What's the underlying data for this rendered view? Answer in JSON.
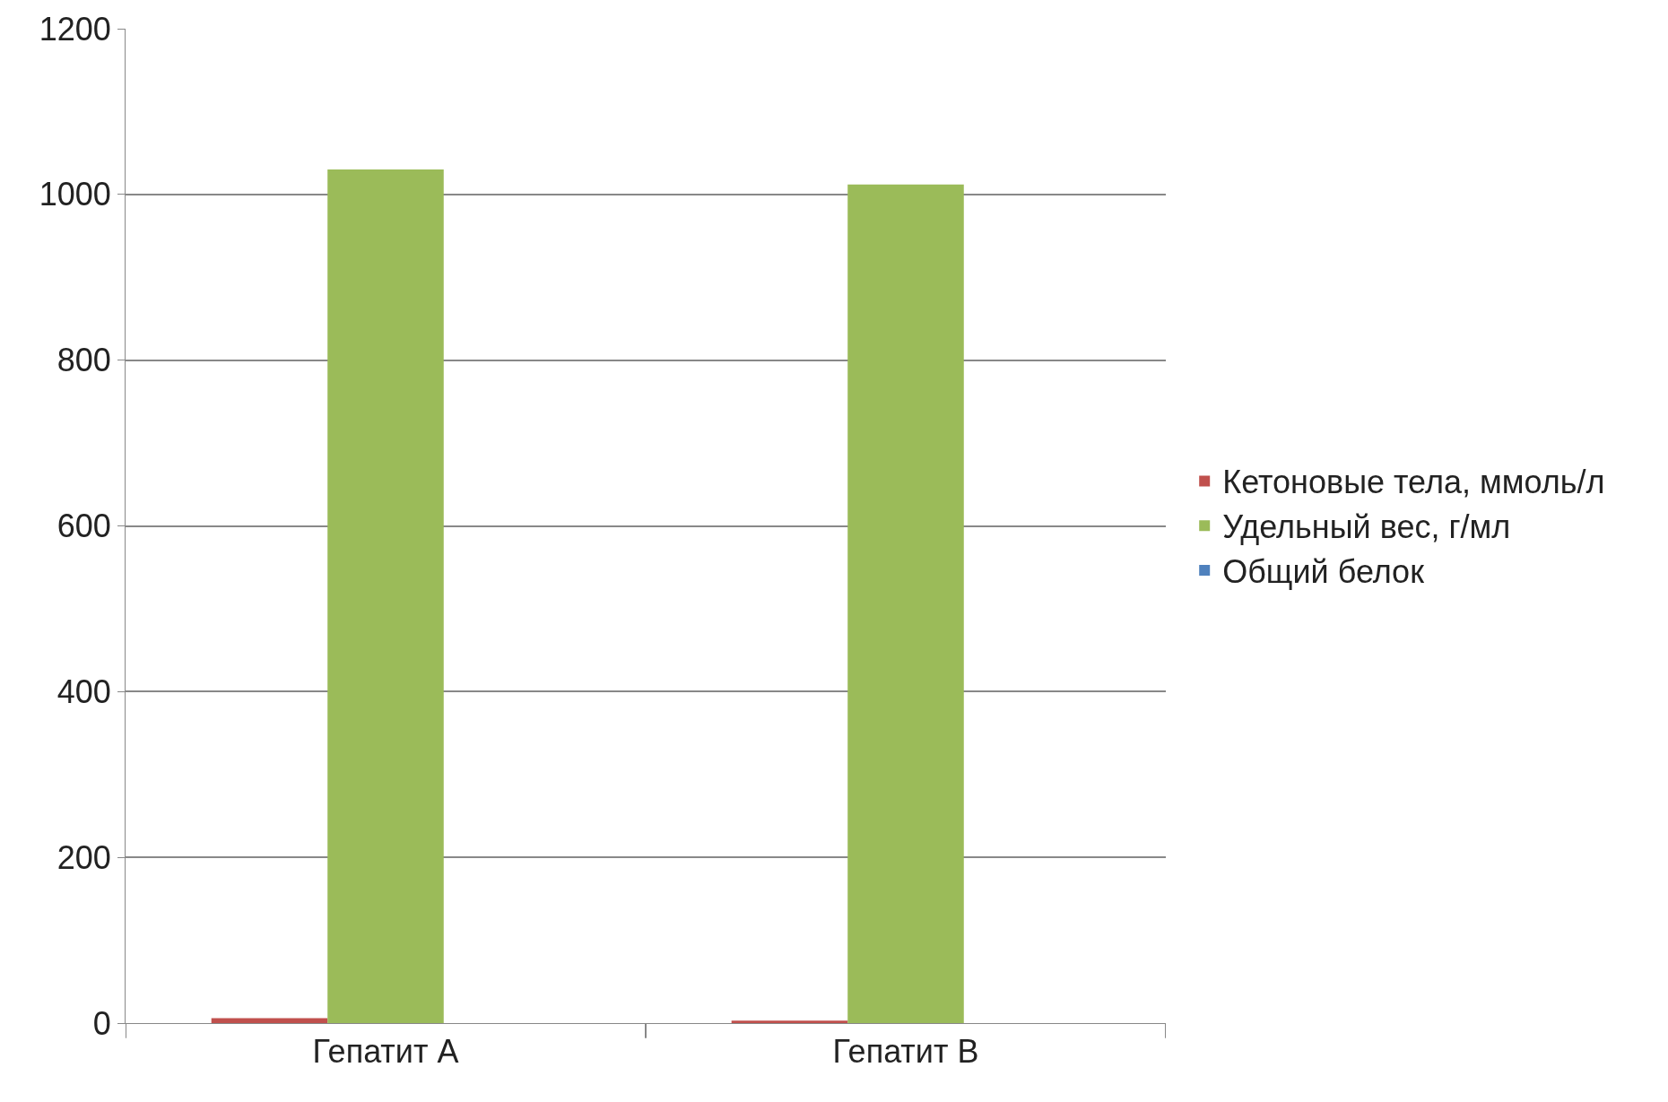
{
  "chart_data": {
    "type": "bar",
    "categories": [
      "Гепатит A",
      "Гепатит B"
    ],
    "series": [
      {
        "name": "Кетоновые тела, ммоль/л",
        "color": "#c0504d",
        "values": [
          6,
          3
        ]
      },
      {
        "name": "Удельный вес, г/мл",
        "color": "#9bbb59",
        "values": [
          1030,
          1012
        ]
      },
      {
        "name": "Общий белок",
        "color": "#4f81bd",
        "values": [
          0,
          0
        ]
      }
    ],
    "ylim": [
      0,
      1200
    ],
    "yticks": [
      0,
      200,
      400,
      600,
      800,
      1000,
      1200
    ],
    "grid": "y",
    "legend": "right"
  }
}
